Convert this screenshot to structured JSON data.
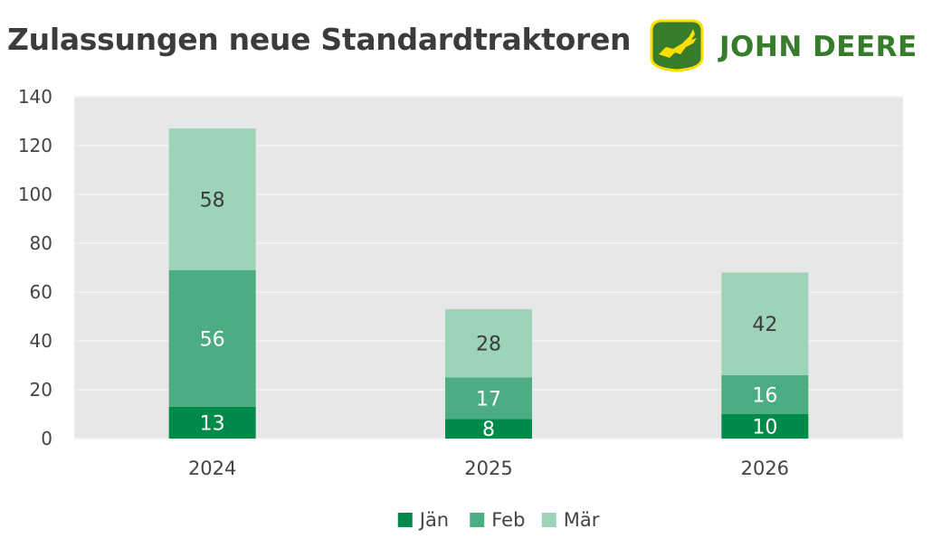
{
  "title": "Zulassungen neue Standardtraktoren",
  "brand": {
    "name": "JOHN DEERE",
    "logo_icon": "leaping-deer-icon",
    "logo_green": "#367c2b",
    "logo_yellow": "#ffde00"
  },
  "chart_data": {
    "type": "bar",
    "stacked": true,
    "categories": [
      "2024",
      "2025",
      "2026"
    ],
    "series": [
      {
        "name": "Jän",
        "values": [
          13,
          8,
          10
        ],
        "color": "#008a4a",
        "label_color": "#ffffff"
      },
      {
        "name": "Feb",
        "values": [
          56,
          17,
          16
        ],
        "color": "#4dad82",
        "label_color": "#ffffff"
      },
      {
        "name": "Mär",
        "values": [
          58,
          28,
          42
        ],
        "color": "#9dd3b9",
        "label_color": "#3c3c3c"
      }
    ],
    "ylim": [
      0,
      140
    ],
    "yticks": [
      0,
      20,
      40,
      60,
      80,
      100,
      120,
      140
    ],
    "xlabel": "",
    "ylabel": "",
    "grid": true,
    "plot_background": "#e7e7e7",
    "legend_position": "bottom"
  }
}
